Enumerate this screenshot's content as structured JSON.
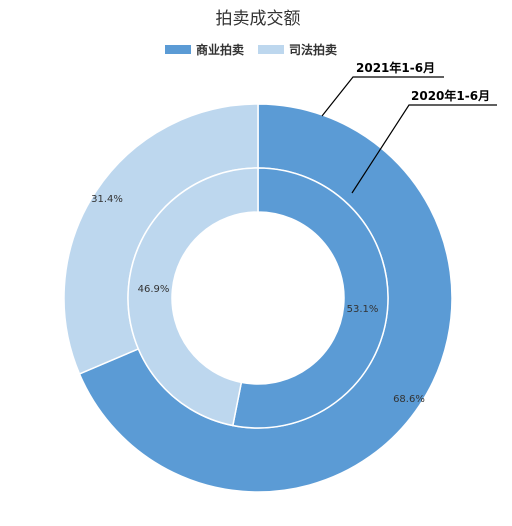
{
  "chart_data": {
    "type": "donut",
    "title": "拍卖成交额",
    "legend_position": "top",
    "series_names": [
      "商业拍卖",
      "司法拍卖"
    ],
    "colors": {
      "商业拍卖": "#5b9bd5",
      "司法拍卖": "#bdd7ee"
    },
    "rings": [
      {
        "name": "2021年1-6月",
        "position": "outer",
        "values": [
          68.6,
          31.4
        ],
        "labels": [
          "68.6%",
          "31.4%"
        ]
      },
      {
        "name": "2020年1-6月",
        "position": "inner",
        "values": [
          53.1,
          46.9
        ],
        "labels": [
          "53.1%",
          "46.9%"
        ]
      }
    ]
  }
}
